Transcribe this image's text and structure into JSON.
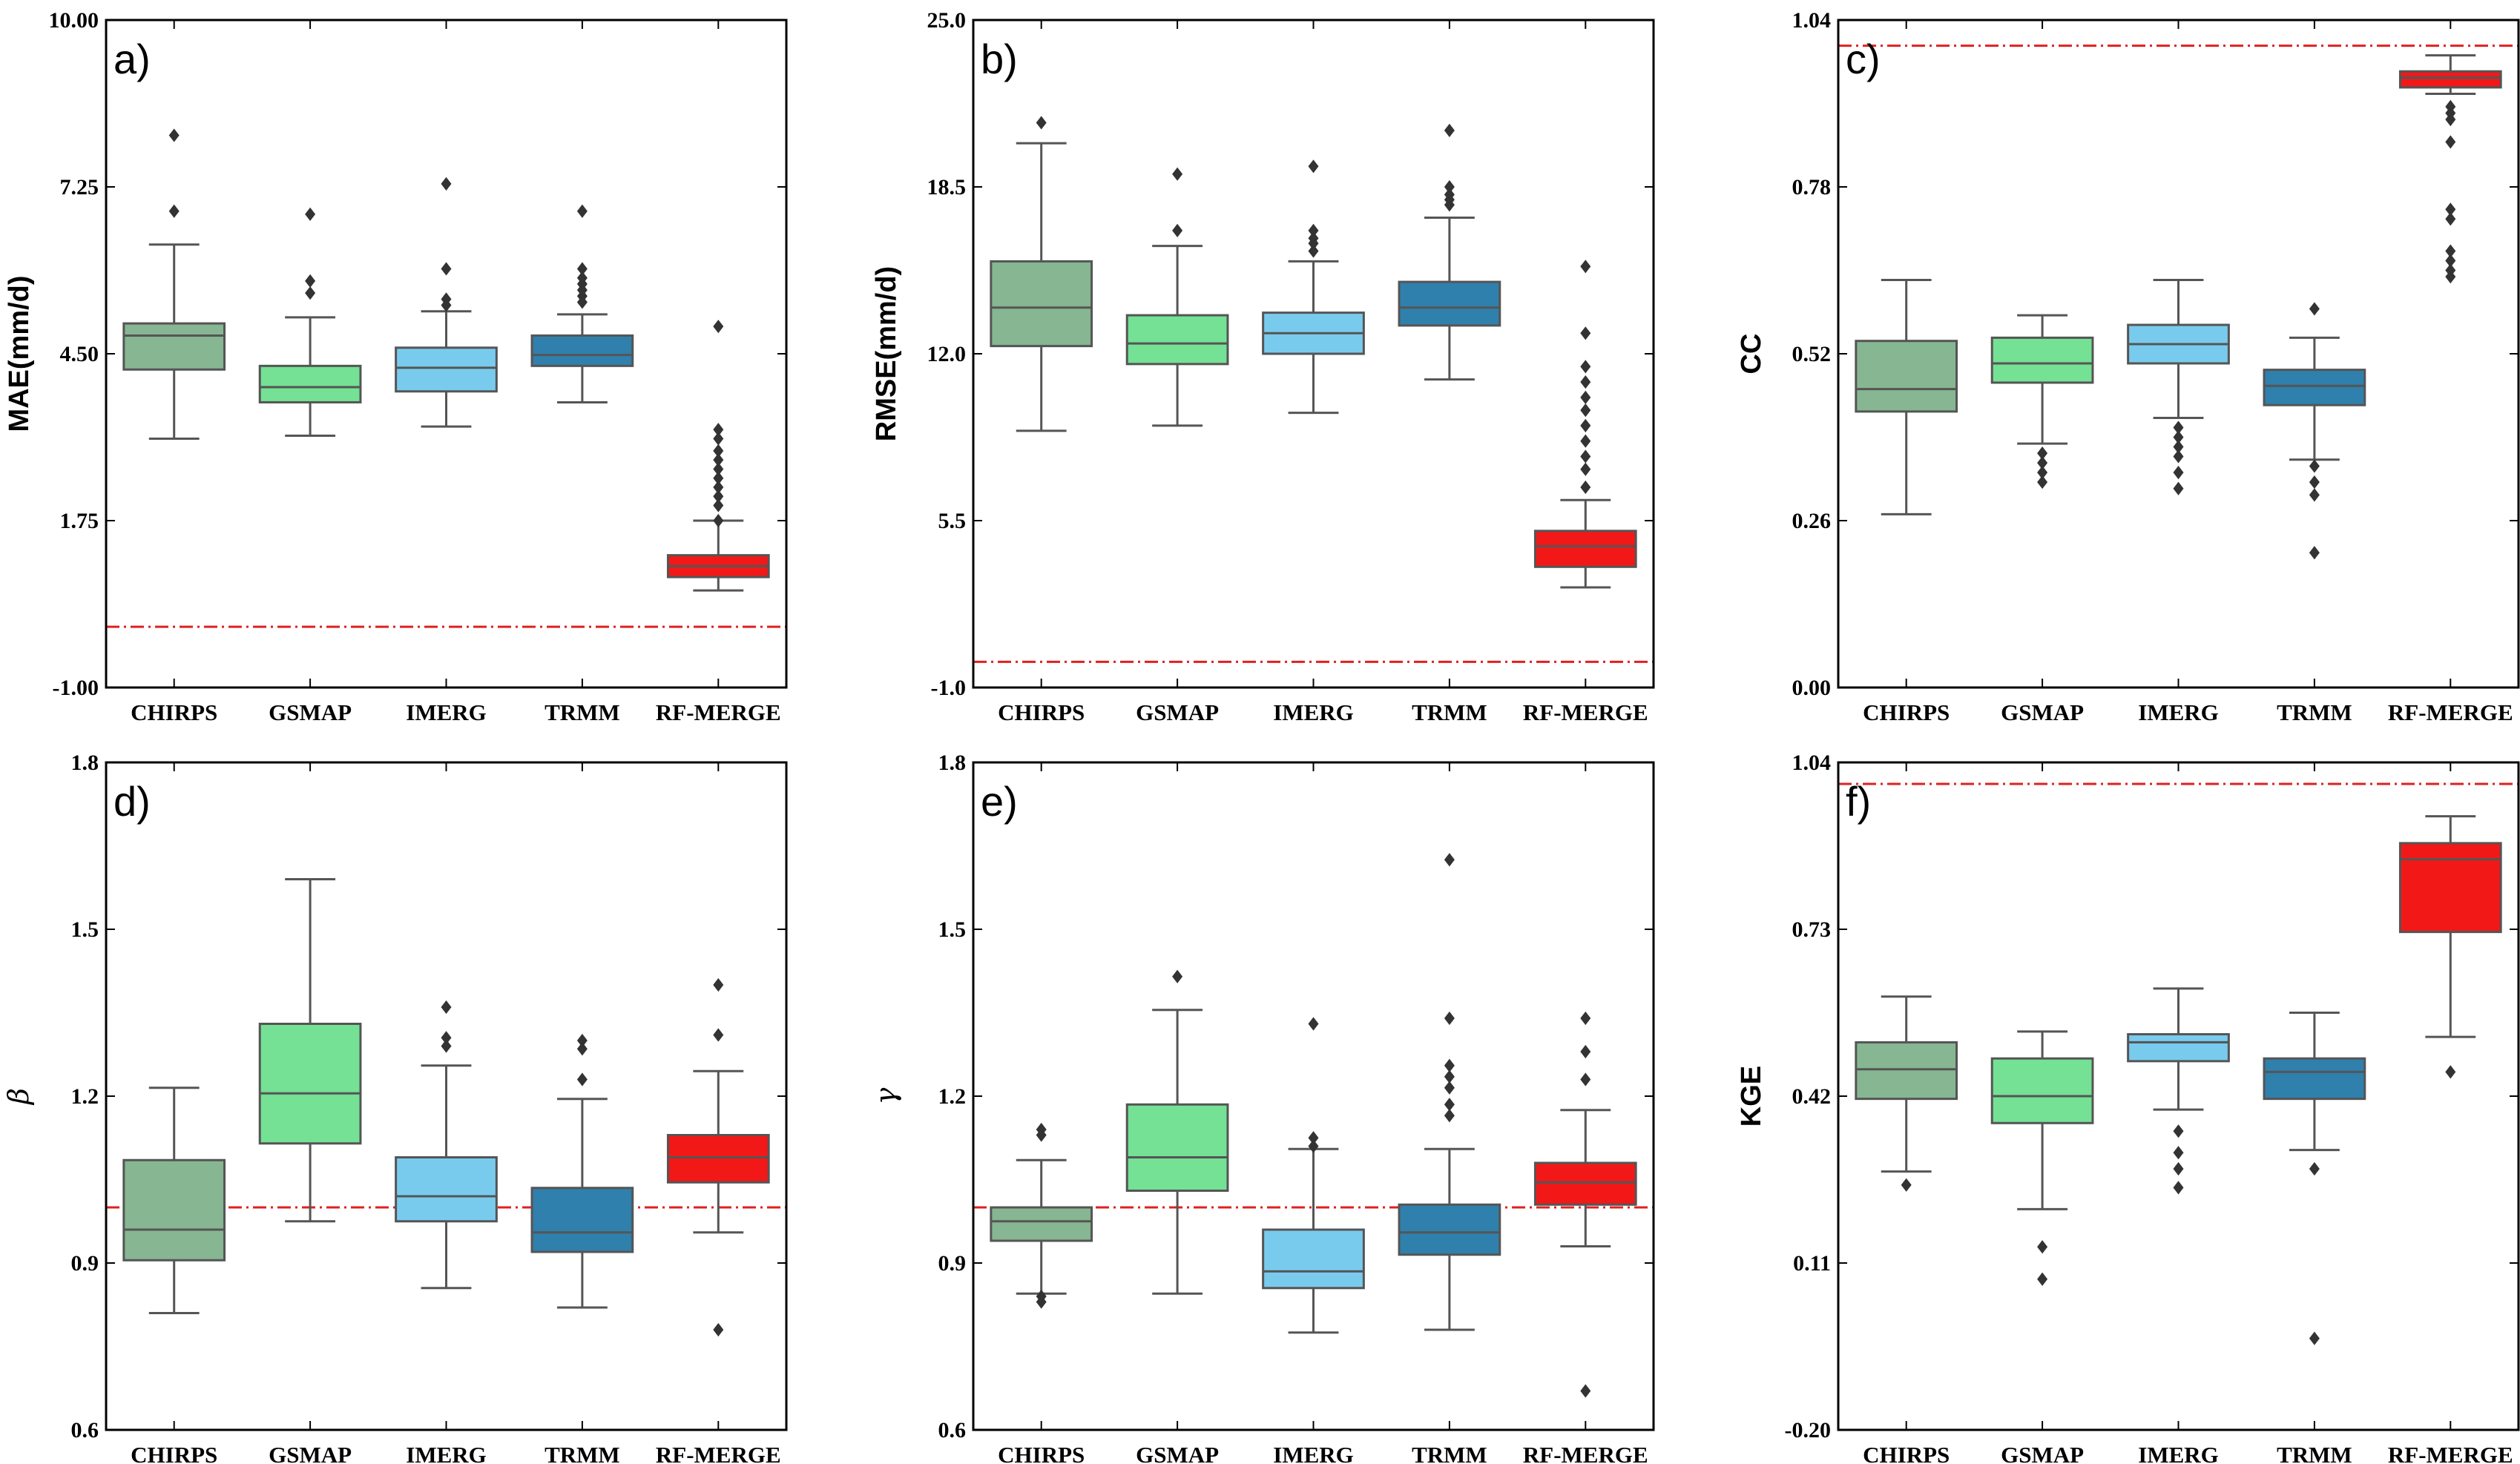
{
  "colors": {
    "CHIRPS": "#86b692",
    "GSMAP": "#74e194",
    "IMERG": "#79cbee",
    "TRMM": "#2f80ac",
    "RF-MERGE": "#f21818",
    "whisker": "#555555",
    "flier": "#333333",
    "reference": "#e02020"
  },
  "chart_data": [
    {
      "type": "box",
      "panel_label": "a)",
      "ylabel": "MAE(mm/d)",
      "ylabel_style": "bold",
      "ylim": [
        -1.0,
        10.0
      ],
      "yticks": [
        -1.0,
        1.75,
        4.5,
        7.25,
        10.0
      ],
      "ytick_labels": [
        "-1.00",
        "1.75",
        "4.50",
        "7.25",
        "10.00"
      ],
      "reference_line": 0.0,
      "categories": [
        "CHIRPS",
        "GSMAP",
        "IMERG",
        "TRMM",
        "RF-MERGE"
      ],
      "boxes": [
        {
          "whisker_low": 3.1,
          "q1": 4.24,
          "median": 4.8,
          "q3": 5.0,
          "whisker_high": 6.3,
          "fliers": [
            6.85,
            8.1
          ]
        },
        {
          "whisker_low": 3.15,
          "q1": 3.7,
          "median": 3.95,
          "q3": 4.3,
          "whisker_high": 5.1,
          "fliers": [
            5.5,
            5.7,
            6.8
          ]
        },
        {
          "whisker_low": 3.3,
          "q1": 3.88,
          "median": 4.27,
          "q3": 4.6,
          "whisker_high": 5.2,
          "fliers": [
            5.3,
            5.4,
            5.9,
            7.3
          ]
        },
        {
          "whisker_low": 3.7,
          "q1": 4.3,
          "median": 4.48,
          "q3": 4.8,
          "whisker_high": 5.15,
          "fliers": [
            5.35,
            5.45,
            5.55,
            5.65,
            5.75,
            5.9,
            6.85
          ]
        },
        {
          "whisker_low": 0.6,
          "q1": 0.82,
          "median": 1.0,
          "q3": 1.18,
          "whisker_high": 1.75,
          "fliers": [
            1.75,
            2.0,
            2.15,
            2.3,
            2.45,
            2.6,
            2.75,
            2.9,
            3.1,
            3.25,
            4.95
          ]
        }
      ]
    },
    {
      "type": "box",
      "panel_label": "b)",
      "ylabel": "RMSE(mm/d)",
      "ylabel_style": "bold",
      "ylim": [
        -1.0,
        25.0
      ],
      "yticks": [
        -1.0,
        5.5,
        12.0,
        18.5,
        25.0
      ],
      "ytick_labels": [
        "-1.0",
        "5.5",
        "12.0",
        "18.5",
        "25.0"
      ],
      "reference_line": 0.0,
      "categories": [
        "CHIRPS",
        "GSMAP",
        "IMERG",
        "TRMM",
        "RF-MERGE"
      ],
      "boxes": [
        {
          "whisker_low": 9.0,
          "q1": 12.3,
          "median": 13.8,
          "q3": 15.6,
          "whisker_high": 20.2,
          "fliers": [
            21.0
          ]
        },
        {
          "whisker_low": 9.2,
          "q1": 11.6,
          "median": 12.4,
          "q3": 13.5,
          "whisker_high": 16.2,
          "fliers": [
            16.8,
            19.0
          ]
        },
        {
          "whisker_low": 9.7,
          "q1": 12.0,
          "median": 12.8,
          "q3": 13.6,
          "whisker_high": 15.6,
          "fliers": [
            16.0,
            16.3,
            16.5,
            16.8,
            19.3
          ]
        },
        {
          "whisker_low": 11.0,
          "q1": 13.1,
          "median": 13.8,
          "q3": 14.8,
          "whisker_high": 17.3,
          "fliers": [
            17.8,
            18.0,
            18.2,
            18.5,
            20.7
          ]
        },
        {
          "whisker_low": 2.9,
          "q1": 3.7,
          "median": 4.5,
          "q3": 5.1,
          "whisker_high": 6.3,
          "fliers": [
            6.8,
            7.5,
            8.0,
            8.6,
            9.2,
            9.8,
            10.3,
            10.9,
            11.5,
            12.8,
            15.4
          ]
        }
      ]
    },
    {
      "type": "box",
      "panel_label": "c)",
      "ylabel": "CC",
      "ylabel_style": "bold",
      "ylim": [
        0.0,
        1.04
      ],
      "yticks": [
        0.0,
        0.26,
        0.52,
        0.78,
        1.04
      ],
      "ytick_labels": [
        "0.00",
        "0.26",
        "0.52",
        "0.78",
        "1.04"
      ],
      "reference_line": 1.0,
      "categories": [
        "CHIRPS",
        "GSMAP",
        "IMERG",
        "TRMM",
        "RF-MERGE"
      ],
      "boxes": [
        {
          "whisker_low": 0.27,
          "q1": 0.43,
          "median": 0.465,
          "q3": 0.54,
          "whisker_high": 0.635,
          "fliers": []
        },
        {
          "whisker_low": 0.38,
          "q1": 0.475,
          "median": 0.505,
          "q3": 0.545,
          "whisker_high": 0.58,
          "fliers": [
            0.32,
            0.335,
            0.35,
            0.365
          ]
        },
        {
          "whisker_low": 0.42,
          "q1": 0.505,
          "median": 0.535,
          "q3": 0.565,
          "whisker_high": 0.635,
          "fliers": [
            0.31,
            0.335,
            0.36,
            0.375,
            0.39,
            0.405
          ]
        },
        {
          "whisker_low": 0.355,
          "q1": 0.44,
          "median": 0.47,
          "q3": 0.495,
          "whisker_high": 0.545,
          "fliers": [
            0.21,
            0.3,
            0.32,
            0.345,
            0.59
          ]
        },
        {
          "whisker_low": 0.925,
          "q1": 0.935,
          "median": 0.95,
          "q3": 0.96,
          "whisker_high": 0.985,
          "fliers": [
            0.64,
            0.65,
            0.665,
            0.68,
            0.73,
            0.745,
            0.85,
            0.885,
            0.895,
            0.905
          ]
        }
      ]
    },
    {
      "type": "box",
      "panel_label": "d)",
      "ylabel": "β",
      "ylabel_style": "italic",
      "ylim": [
        0.6,
        1.8
      ],
      "yticks": [
        0.6,
        0.9,
        1.2,
        1.5,
        1.8
      ],
      "ytick_labels": [
        "0.6",
        "0.9",
        "1.2",
        "1.5",
        "1.8"
      ],
      "reference_line": 1.0,
      "categories": [
        "CHIRPS",
        "GSMAP",
        "IMERG",
        "TRMM",
        "RF-MERGE"
      ],
      "boxes": [
        {
          "whisker_low": 0.81,
          "q1": 0.905,
          "median": 0.96,
          "q3": 1.085,
          "whisker_high": 1.215,
          "fliers": []
        },
        {
          "whisker_low": 0.975,
          "q1": 1.115,
          "median": 1.205,
          "q3": 1.33,
          "whisker_high": 1.59,
          "fliers": []
        },
        {
          "whisker_low": 0.855,
          "q1": 0.975,
          "median": 1.02,
          "q3": 1.09,
          "whisker_high": 1.255,
          "fliers": [
            1.29,
            1.305,
            1.36
          ]
        },
        {
          "whisker_low": 0.82,
          "q1": 0.92,
          "median": 0.955,
          "q3": 1.035,
          "whisker_high": 1.195,
          "fliers": [
            1.23,
            1.285,
            1.3
          ]
        },
        {
          "whisker_low": 0.955,
          "q1": 1.045,
          "median": 1.09,
          "q3": 1.13,
          "whisker_high": 1.245,
          "fliers": [
            0.78,
            1.31,
            1.4
          ]
        }
      ]
    },
    {
      "type": "box",
      "panel_label": "e)",
      "ylabel": "γ",
      "ylabel_style": "italic",
      "ylim": [
        0.6,
        1.8
      ],
      "yticks": [
        0.6,
        0.9,
        1.2,
        1.5,
        1.8
      ],
      "ytick_labels": [
        "0.6",
        "0.9",
        "1.2",
        "1.5",
        "1.8"
      ],
      "reference_line": 1.0,
      "categories": [
        "CHIRPS",
        "GSMAP",
        "IMERG",
        "TRMM",
        "RF-MERGE"
      ],
      "boxes": [
        {
          "whisker_low": 0.845,
          "q1": 0.94,
          "median": 0.975,
          "q3": 1.0,
          "whisker_high": 1.085,
          "fliers": [
            0.83,
            0.84,
            1.13,
            1.14
          ]
        },
        {
          "whisker_low": 0.845,
          "q1": 1.03,
          "median": 1.09,
          "q3": 1.185,
          "whisker_high": 1.355,
          "fliers": [
            1.415
          ]
        },
        {
          "whisker_low": 0.775,
          "q1": 0.855,
          "median": 0.885,
          "q3": 0.96,
          "whisker_high": 1.105,
          "fliers": [
            1.11,
            1.125,
            1.33
          ]
        },
        {
          "whisker_low": 0.78,
          "q1": 0.915,
          "median": 0.955,
          "q3": 1.005,
          "whisker_high": 1.105,
          "fliers": [
            1.165,
            1.185,
            1.215,
            1.235,
            1.255,
            1.34,
            1.625
          ]
        },
        {
          "whisker_low": 0.93,
          "q1": 1.005,
          "median": 1.045,
          "q3": 1.08,
          "whisker_high": 1.175,
          "fliers": [
            0.67,
            1.23,
            1.28,
            1.34
          ]
        }
      ]
    },
    {
      "type": "box",
      "panel_label": "f)",
      "ylabel": "KGE",
      "ylabel_style": "bold",
      "ylim": [
        -0.2,
        1.04
      ],
      "yticks": [
        -0.2,
        0.11,
        0.42,
        0.73,
        1.04
      ],
      "ytick_labels": [
        "-0.20",
        "0.11",
        "0.42",
        "0.73",
        "1.04"
      ],
      "reference_line": 1.0,
      "categories": [
        "CHIRPS",
        "GSMAP",
        "IMERG",
        "TRMM",
        "RF-MERGE"
      ],
      "boxes": [
        {
          "whisker_low": 0.28,
          "q1": 0.415,
          "median": 0.47,
          "q3": 0.52,
          "whisker_high": 0.605,
          "fliers": [
            0.255
          ]
        },
        {
          "whisker_low": 0.21,
          "q1": 0.37,
          "median": 0.42,
          "q3": 0.49,
          "whisker_high": 0.54,
          "fliers": [
            0.08,
            0.14
          ]
        },
        {
          "whisker_low": 0.395,
          "q1": 0.485,
          "median": 0.52,
          "q3": 0.535,
          "whisker_high": 0.62,
          "fliers": [
            0.25,
            0.285,
            0.315,
            0.355
          ]
        },
        {
          "whisker_low": 0.32,
          "q1": 0.415,
          "median": 0.465,
          "q3": 0.49,
          "whisker_high": 0.575,
          "fliers": [
            -0.03,
            0.285
          ]
        },
        {
          "whisker_low": 0.53,
          "q1": 0.725,
          "median": 0.86,
          "q3": 0.89,
          "whisker_high": 0.94,
          "fliers": [
            0.465
          ]
        }
      ]
    }
  ]
}
